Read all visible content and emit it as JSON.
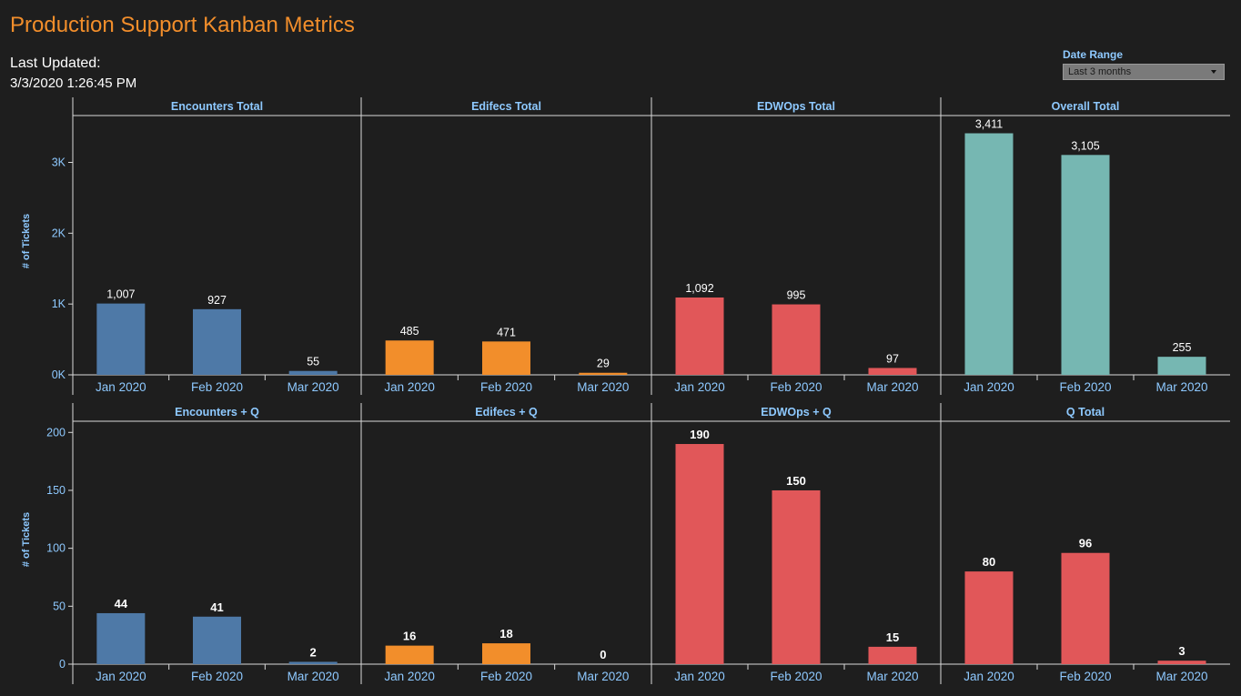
{
  "header": {
    "title": "Production Support Kanban Metrics",
    "last_updated_label": "Last Updated:",
    "last_updated_value": "3/3/2020 1:26:45 PM"
  },
  "filter": {
    "label": "Date Range",
    "selected": "Last 3 months"
  },
  "colors": {
    "background": "#1e1e1e",
    "accent_title": "#f28e2b",
    "label_blue": "#8ec9ff",
    "encounters": "#4e79a7",
    "edifecs": "#f28e2b",
    "edwops": "#e15759",
    "overall": "#76b7b2",
    "q_total": "#e15759"
  },
  "chart_data": [
    {
      "type": "bar",
      "ylabel": "# of Tickets",
      "yticks": [
        "0K",
        "1K",
        "2K",
        "3K"
      ],
      "ylim": [
        0,
        3700
      ],
      "categories": [
        "Jan 2020",
        "Feb 2020",
        "Mar 2020"
      ],
      "series": [
        {
          "name": "Encounters Total",
          "color_key": "encounters",
          "values": [
            1007,
            927,
            55
          ],
          "labels": [
            "1,007",
            "927",
            "55"
          ]
        },
        {
          "name": "Edifecs Total",
          "color_key": "edifecs",
          "values": [
            485,
            471,
            29
          ],
          "labels": [
            "485",
            "471",
            "29"
          ]
        },
        {
          "name": "EDWOps Total",
          "color_key": "edwops",
          "values": [
            1092,
            995,
            97
          ],
          "labels": [
            "1,092",
            "995",
            "97"
          ]
        },
        {
          "name": "Overall Total",
          "color_key": "overall",
          "values": [
            3411,
            3105,
            255
          ],
          "labels": [
            "3,411",
            "3,105",
            "255"
          ]
        }
      ]
    },
    {
      "type": "bar",
      "ylabel": "# of Tickets",
      "yticks": [
        "0",
        "50",
        "100",
        "150",
        "200"
      ],
      "ylim": [
        0,
        212
      ],
      "categories": [
        "Jan 2020",
        "Feb 2020",
        "Mar 2020"
      ],
      "series": [
        {
          "name": "Encounters + Q",
          "color_key": "encounters",
          "values": [
            44,
            41,
            2
          ],
          "labels": [
            "44",
            "41",
            "2"
          ]
        },
        {
          "name": "Edifecs + Q",
          "color_key": "edifecs",
          "values": [
            16,
            18,
            0
          ],
          "labels": [
            "16",
            "18",
            "0"
          ]
        },
        {
          "name": "EDWOps + Q",
          "color_key": "edwops",
          "values": [
            190,
            150,
            15
          ],
          "labels": [
            "190",
            "150",
            "15"
          ]
        },
        {
          "name": "Q Total",
          "color_key": "q_total",
          "values": [
            80,
            96,
            3
          ],
          "labels": [
            "80",
            "96",
            "3"
          ]
        }
      ]
    }
  ]
}
